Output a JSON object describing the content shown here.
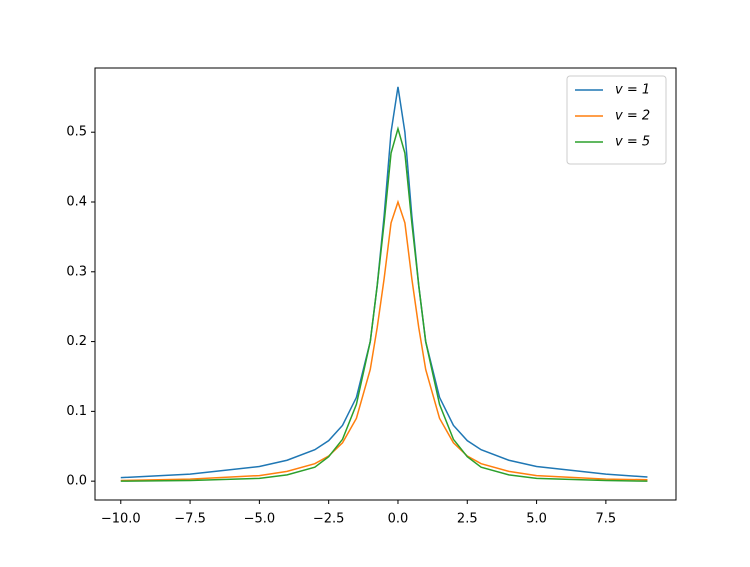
{
  "chart_data": {
    "type": "line",
    "x": [
      -10,
      -7.5,
      -5,
      -4,
      -3,
      -2.5,
      -2,
      -1.5,
      -1,
      -0.75,
      -0.5,
      -0.25,
      0,
      0.25,
      0.5,
      0.75,
      1,
      1.5,
      2,
      2.5,
      3,
      4,
      5,
      7.5,
      9
    ],
    "series": [
      {
        "name": "v = 1",
        "color": "#1f77b4",
        "values": [
          0.005,
          0.01,
          0.021,
          0.03,
          0.045,
          0.058,
          0.08,
          0.12,
          0.2,
          0.28,
          0.38,
          0.5,
          0.565,
          0.5,
          0.38,
          0.28,
          0.2,
          0.12,
          0.08,
          0.058,
          0.045,
          0.03,
          0.021,
          0.01,
          0.006
        ]
      },
      {
        "name": "v = 2",
        "color": "#ff7f0e",
        "values": [
          0.001,
          0.003,
          0.008,
          0.014,
          0.025,
          0.036,
          0.055,
          0.09,
          0.16,
          0.22,
          0.29,
          0.37,
          0.4,
          0.37,
          0.29,
          0.22,
          0.16,
          0.09,
          0.055,
          0.036,
          0.025,
          0.014,
          0.008,
          0.003,
          0.002
        ]
      },
      {
        "name": "v = 5",
        "color": "#2ca02c",
        "values": [
          0.0,
          0.001,
          0.004,
          0.009,
          0.02,
          0.035,
          0.06,
          0.11,
          0.2,
          0.28,
          0.37,
          0.47,
          0.505,
          0.47,
          0.37,
          0.28,
          0.2,
          0.11,
          0.06,
          0.035,
          0.02,
          0.009,
          0.004,
          0.001,
          0.0
        ]
      }
    ],
    "xlim": [
      -10.93,
      10.03
    ],
    "ylim": [
      -0.027,
      0.592
    ],
    "xticks": [
      {
        "value": -10,
        "label": "−10.0"
      },
      {
        "value": -7.5,
        "label": "−7.5"
      },
      {
        "value": -5,
        "label": "−5.0"
      },
      {
        "value": -2.5,
        "label": "−2.5"
      },
      {
        "value": 0,
        "label": "0.0"
      },
      {
        "value": 2.5,
        "label": "2.5"
      },
      {
        "value": 5,
        "label": "5.0"
      },
      {
        "value": 7.5,
        "label": "7.5"
      }
    ],
    "yticks": [
      {
        "value": 0,
        "label": "0.0"
      },
      {
        "value": 0.1,
        "label": "0.1"
      },
      {
        "value": 0.2,
        "label": "0.2"
      },
      {
        "value": 0.3,
        "label": "0.3"
      },
      {
        "value": 0.4,
        "label": "0.4"
      },
      {
        "value": 0.5,
        "label": "0.5"
      }
    ],
    "legend": "upper right"
  }
}
